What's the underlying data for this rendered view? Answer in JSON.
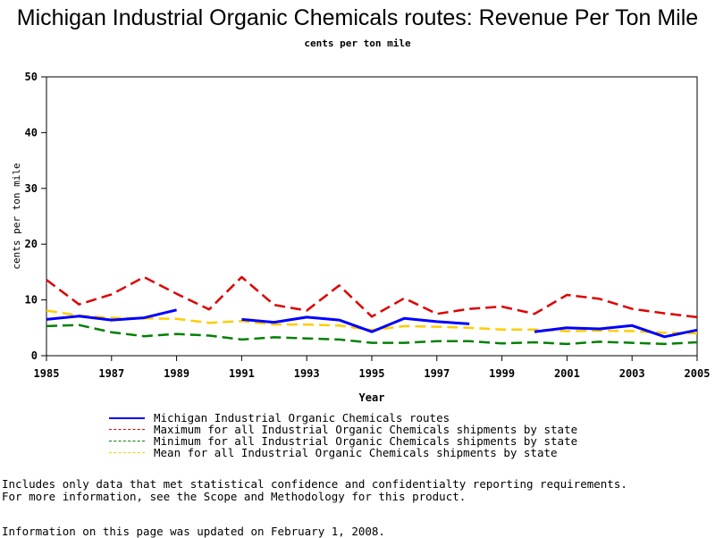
{
  "chart_data": {
    "type": "line",
    "title": "Michigan Industrial Organic Chemicals routes: Revenue Per Ton Mile",
    "subtitle": "cents per ton mile",
    "xlabel": "Year",
    "ylabel": "cents per ton mile",
    "xlim": [
      1985,
      2005
    ],
    "ylim": [
      0,
      50
    ],
    "x_ticks": [
      1985,
      1987,
      1989,
      1991,
      1993,
      1995,
      1997,
      1999,
      2001,
      2003,
      2005
    ],
    "y_ticks": [
      0,
      10,
      20,
      30,
      40,
      50
    ],
    "x": [
      1985,
      1986,
      1987,
      1988,
      1989,
      1990,
      1991,
      1992,
      1993,
      1994,
      1995,
      1996,
      1997,
      1998,
      1999,
      2000,
      2001,
      2002,
      2003,
      2004,
      2005
    ],
    "series": [
      {
        "name": "Michigan Industrial Organic Chemicals routes",
        "color": "#0000ff",
        "style": "solid",
        "values": [
          6.5,
          7.1,
          6.4,
          6.8,
          8.2,
          null,
          6.5,
          6.0,
          6.9,
          6.4,
          4.3,
          6.7,
          6.1,
          5.7,
          null,
          4.3,
          5.0,
          4.8,
          5.4,
          3.4,
          4.6
        ]
      },
      {
        "name": "Maximum for all Industrial Organic Chemicals shipments by state",
        "color": "#dd0000",
        "style": "dashed",
        "values": [
          13.6,
          9.2,
          11.0,
          14.1,
          11.1,
          8.3,
          14.1,
          9.1,
          8.1,
          12.6,
          7.0,
          10.3,
          7.5,
          8.4,
          8.8,
          7.5,
          10.9,
          10.2,
          8.4,
          7.6,
          6.9
        ]
      },
      {
        "name": "Minimum for all Industrial Organic Chemicals shipments by state",
        "color": "#008000",
        "style": "dashed",
        "values": [
          5.3,
          5.5,
          4.2,
          3.5,
          3.9,
          3.6,
          2.9,
          3.3,
          3.1,
          2.9,
          2.3,
          2.3,
          2.6,
          2.6,
          2.2,
          2.4,
          2.1,
          2.5,
          2.3,
          2.1,
          2.4
        ]
      },
      {
        "name": "Mean for all Industrial Organic Chemicals shipments by state",
        "color": "#ffcc00",
        "style": "dashed",
        "values": [
          8.1,
          7.2,
          6.8,
          6.7,
          6.6,
          5.9,
          6.2,
          5.6,
          5.6,
          5.4,
          4.6,
          5.3,
          5.2,
          5.0,
          4.7,
          4.7,
          4.4,
          4.5,
          4.4,
          4.1,
          4.0
        ]
      }
    ],
    "grid": false,
    "legend_position": "bottom"
  },
  "notes": {
    "line1": "Includes only data that met statistical confidence and confidentialty reporting requirements.",
    "line2": "For more information, see the Scope and Methodology for this product.",
    "updated": "Information on this page was updated on February 1, 2008."
  }
}
